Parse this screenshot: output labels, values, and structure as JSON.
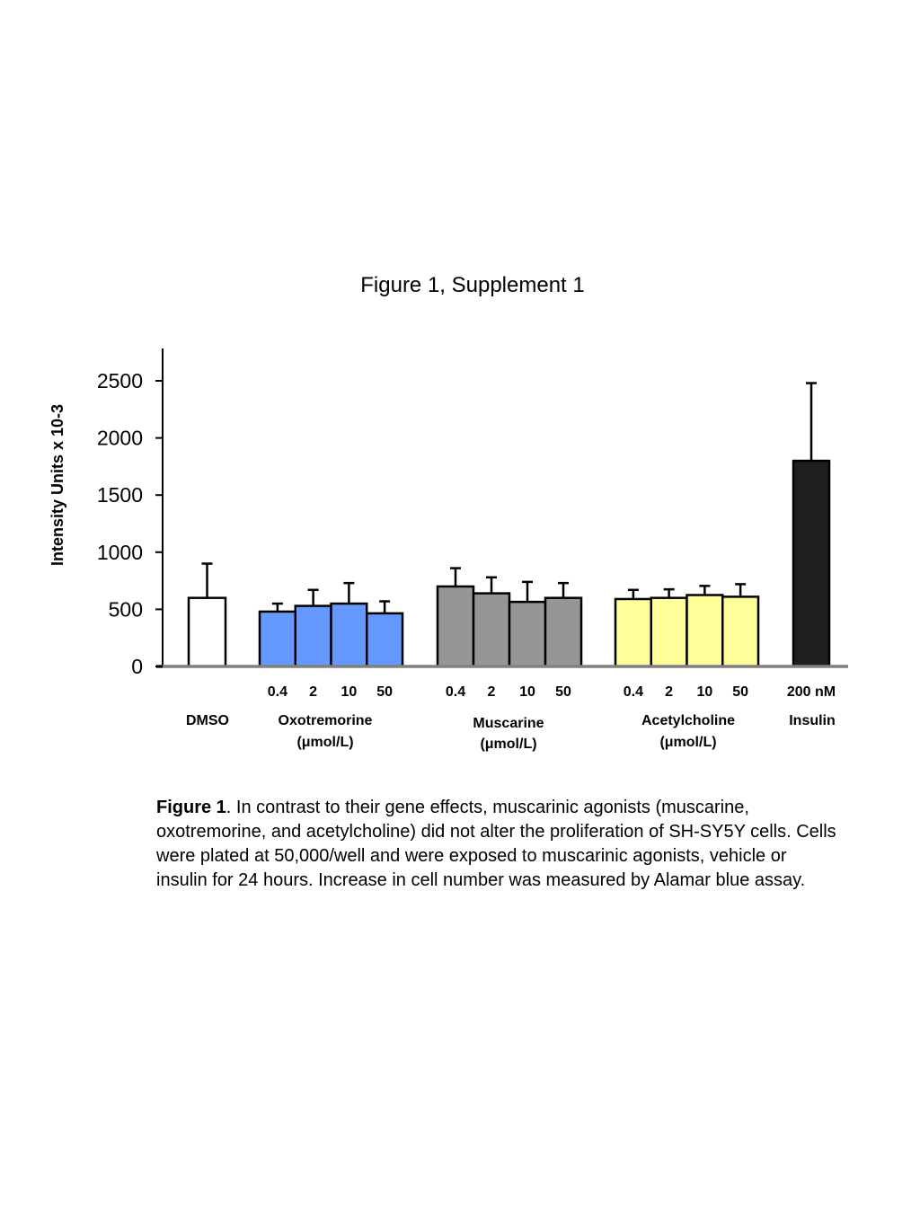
{
  "page": {
    "title": "Figure 1, Supplement 1"
  },
  "chart_data": {
    "type": "bar",
    "title": "Figure 1, Supplement 1",
    "ylabel": "Intensity Units x 10-3",
    "xlabel": "",
    "ylim": [
      0,
      2800
    ],
    "yticks": [
      0,
      500,
      1000,
      1500,
      2000,
      2500
    ],
    "grid": false,
    "groups": [
      {
        "name": "DMSO",
        "unit": "",
        "doses": [
          ""
        ],
        "values": [
          600
        ],
        "errors": [
          300
        ],
        "color": "#ffffff"
      },
      {
        "name": "Oxotremorine",
        "unit": "(μmol/L)",
        "doses": [
          "0.4",
          "2",
          "10",
          "50"
        ],
        "values": [
          480,
          530,
          550,
          465
        ],
        "errors": [
          70,
          140,
          180,
          105
        ],
        "color": "#6699ff"
      },
      {
        "name": "Muscarine",
        "unit": "(μmol/L)",
        "doses": [
          "0.4",
          "2",
          "10",
          "50"
        ],
        "values": [
          700,
          640,
          565,
          600
        ],
        "errors": [
          160,
          140,
          175,
          130
        ],
        "color": "#969696"
      },
      {
        "name": "Acetylcholine",
        "unit": "(μmol/L)",
        "doses": [
          "0.4",
          "2",
          "10",
          "50"
        ],
        "values": [
          590,
          600,
          625,
          610
        ],
        "errors": [
          80,
          75,
          80,
          110
        ],
        "color": "#ffff99"
      },
      {
        "name": "Insulin",
        "unit": "",
        "doses": [
          "200 nM"
        ],
        "values": [
          1800
        ],
        "errors": [
          680
        ],
        "color": "#1e1e1e"
      }
    ]
  },
  "caption": {
    "lead": "Figure 1",
    "text": ". In contrast to their gene effects, muscarinic agonists (muscarine, oxotremorine, and acetylcholine) did not alter the proliferation of SH-SY5Y cells. Cells were plated at 50,000/well and were exposed to muscarinic agonists, vehicle or insulin for 24 hours. Increase in cell number was measured by Alamar blue assay."
  }
}
